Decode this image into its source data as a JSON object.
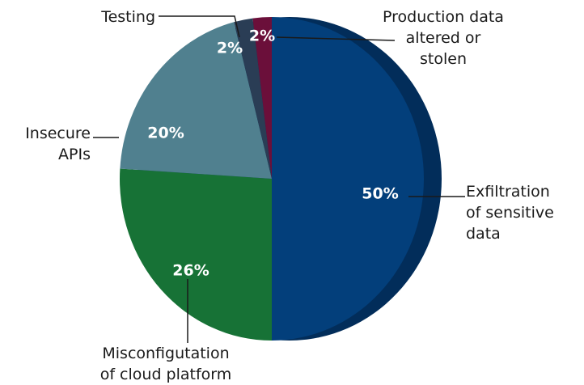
{
  "chart_data": {
    "type": "pie",
    "categories": [
      "Exfiltration\nof sensitive\ndata",
      "Misconfigutation\nof cloud platform",
      "Insecure\nAPIs",
      "Testing",
      "Production data\naltered or\nstolen"
    ],
    "values": [
      50,
      26,
      20,
      2,
      2
    ],
    "value_labels": [
      "50%",
      "26%",
      "20%",
      "2%",
      "2%"
    ],
    "colors": [
      "#033f7b",
      "#177236",
      "#50808f",
      "#2a3d55",
      "#6b0f3a"
    ]
  }
}
